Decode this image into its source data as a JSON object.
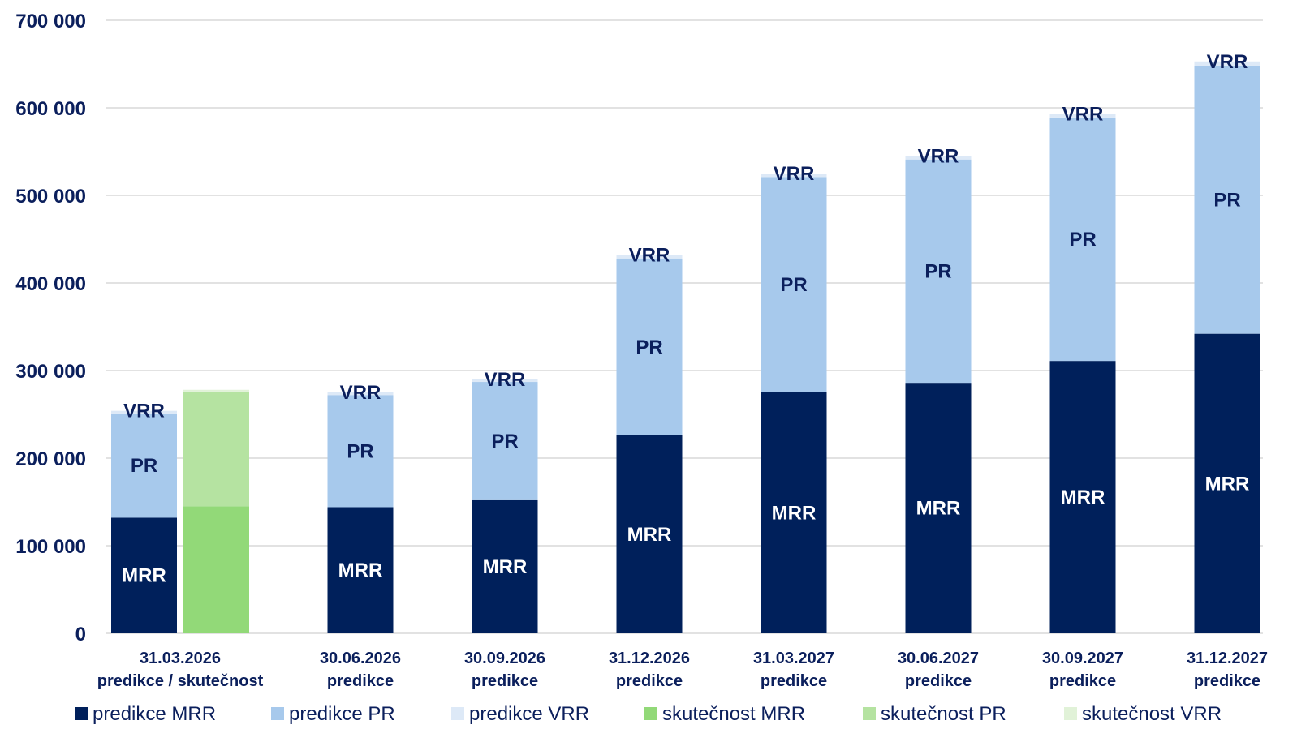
{
  "chart_data": {
    "type": "bar",
    "stacked": true,
    "grid": true,
    "legend_position": "bottom",
    "ylim": [
      0,
      700000
    ],
    "y_ticks": [
      {
        "value": 0,
        "label": "0"
      },
      {
        "value": 100000,
        "label": "100 000"
      },
      {
        "value": 200000,
        "label": "200 000"
      },
      {
        "value": 300000,
        "label": "300 000"
      },
      {
        "value": 400000,
        "label": "400 000"
      },
      {
        "value": 500000,
        "label": "500 000"
      },
      {
        "value": 600000,
        "label": "600 000"
      },
      {
        "value": 700000,
        "label": "700 000"
      }
    ],
    "categories": [
      {
        "date": "31.03.2026",
        "sub": "predikce / skutečnost"
      },
      {
        "date": "30.06.2026",
        "sub": "predikce"
      },
      {
        "date": "30.09.2026",
        "sub": "predikce"
      },
      {
        "date": "31.12.2026",
        "sub": "predikce"
      },
      {
        "date": "31.03.2027",
        "sub": "predikce"
      },
      {
        "date": "30.06.2027",
        "sub": "predikce"
      },
      {
        "date": "30.09.2027",
        "sub": "predikce"
      },
      {
        "date": "31.12.2027",
        "sub": "predikce"
      }
    ],
    "series": [
      {
        "name": "predikce MRR",
        "group": "predikce",
        "color": "#00205b",
        "label": "MRR",
        "label_color": "#ffffff",
        "values": [
          132000,
          144000,
          152000,
          226000,
          275000,
          286000,
          311000,
          342000
        ]
      },
      {
        "name": "predikce PR",
        "group": "predikce",
        "color": "#a7c9ec",
        "label": "PR",
        "label_color": "#0b1f5c",
        "values": [
          119000,
          128000,
          135000,
          202000,
          246000,
          255000,
          278000,
          306000
        ]
      },
      {
        "name": "predikce VRR",
        "group": "predikce",
        "color": "#dde9f7",
        "label": "VRR",
        "label_color": "#0b1f5c",
        "values": [
          3000,
          3000,
          3000,
          4000,
          4000,
          4000,
          4000,
          5000
        ]
      },
      {
        "name": "skutečnost MRR",
        "group": "skutečnost",
        "color": "#92d978",
        "label": "",
        "label_color": "#0b1f5c",
        "values": [
          145000,
          null,
          null,
          null,
          null,
          null,
          null,
          null
        ]
      },
      {
        "name": "skutečnost PR",
        "group": "skutečnost",
        "color": "#b5e3a1",
        "label": "",
        "label_color": "#0b1f5c",
        "values": [
          131000,
          null,
          null,
          null,
          null,
          null,
          null,
          null
        ]
      },
      {
        "name": "skutečnost VRR",
        "group": "skutečnost",
        "color": "#e1f2d8",
        "label": "",
        "label_color": "#0b1f5c",
        "values": [
          2000,
          null,
          null,
          null,
          null,
          null,
          null,
          null
        ]
      }
    ],
    "colors": {
      "text": "#0b1f5c",
      "grid": "#d9d9d9"
    }
  }
}
